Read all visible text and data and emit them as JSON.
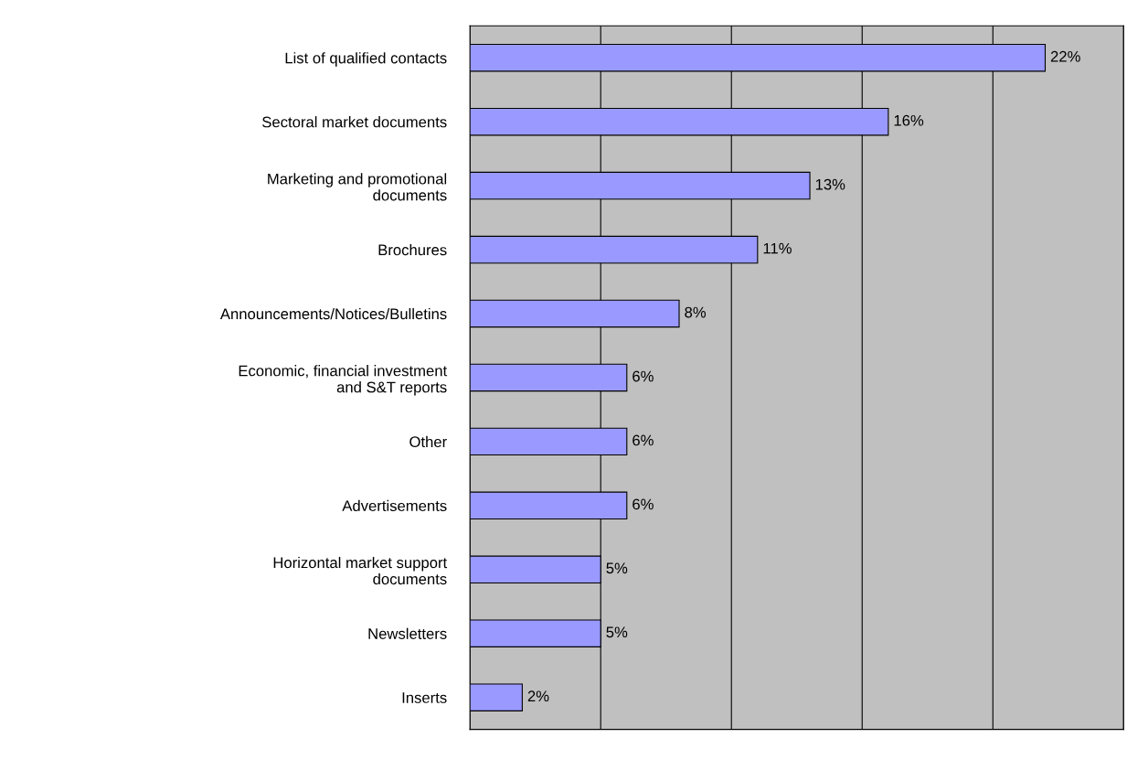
{
  "chart_data": {
    "type": "bar",
    "orientation": "horizontal",
    "categories": [
      "List of qualified contacts",
      "Sectoral market documents",
      "Marketing and promotional\ndocuments",
      "Brochures",
      "Announcements/Notices/Bulletins",
      "Economic, financial investment\nand S&T reports",
      "Other",
      "Advertisements",
      "Horizontal market support\ndocuments",
      "Newsletters",
      "Inserts"
    ],
    "values": [
      22,
      16,
      13,
      11,
      8,
      6,
      6,
      6,
      5,
      5,
      2
    ],
    "value_labels": [
      "22%",
      "16%",
      "13%",
      "11%",
      "8%",
      "6%",
      "6%",
      "6%",
      "5%",
      "5%",
      "2%"
    ],
    "color": "#9999ff",
    "xlim": [
      0,
      25
    ],
    "xticks": [
      {
        "value": 0,
        "label": null
      },
      {
        "value": 5,
        "label": null
      },
      {
        "value": 10,
        "label": null
      },
      {
        "value": 15,
        "label": null
      },
      {
        "value": 20,
        "label": null
      },
      {
        "value": 25,
        "label": null
      }
    ],
    "tick_labels": "y",
    "grid": "x"
  }
}
